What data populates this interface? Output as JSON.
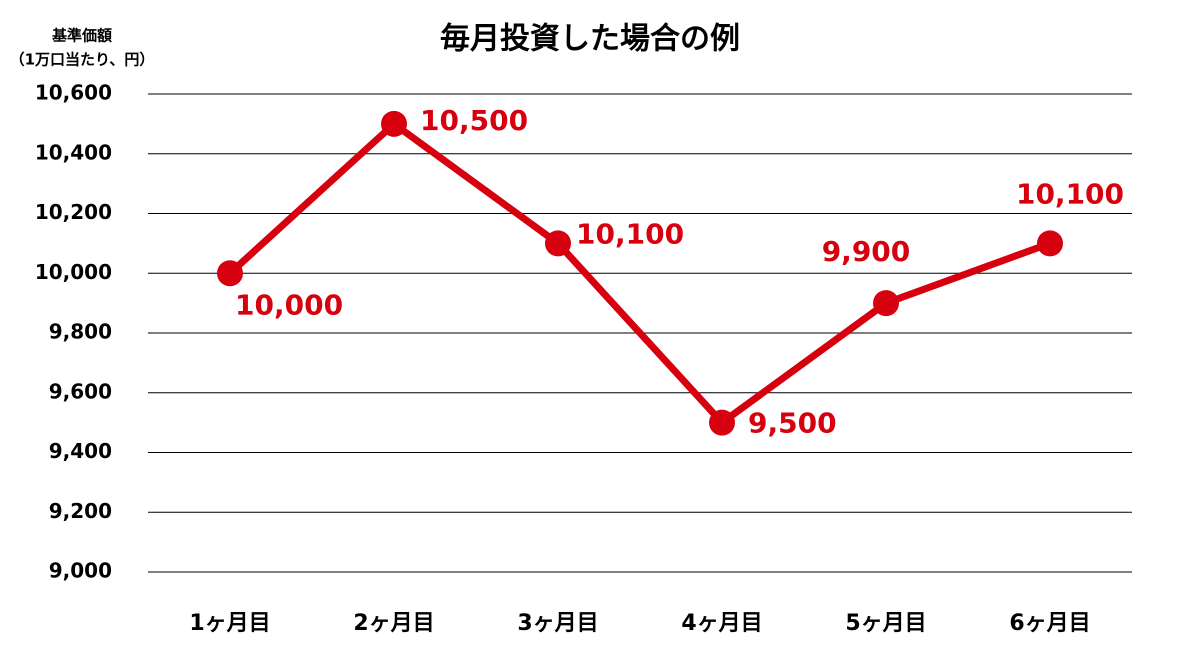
{
  "chart_data": {
    "type": "line",
    "title": "毎月投資した場合の例",
    "y_label": [
      "基準価額",
      "（1万口当たり、円）"
    ],
    "categories": [
      "1ヶ月目",
      "2ヶ月目",
      "3ヶ月目",
      "4ヶ月目",
      "5ヶ月目",
      "6ヶ月目"
    ],
    "series": [
      {
        "color": "#d7000f",
        "values": [
          10000,
          10500,
          10100,
          9500,
          9900,
          10100
        ],
        "value_labels": [
          "10,000",
          "10,500",
          "10,100",
          "9,500",
          "9,900",
          "10,100"
        ]
      }
    ],
    "ylim": [
      9000,
      10600
    ],
    "yticks": [
      {
        "value": 9000,
        "label": "9,000"
      },
      {
        "value": 9200,
        "label": "9,200"
      },
      {
        "value": 9400,
        "label": "9,400"
      },
      {
        "value": 9600,
        "label": "9,600"
      },
      {
        "value": 9800,
        "label": "9,800"
      },
      {
        "value": 10000,
        "label": "10,000"
      },
      {
        "value": 10200,
        "label": "10,200"
      },
      {
        "value": 10400,
        "label": "10,400"
      },
      {
        "value": 10600,
        "label": "10,600"
      }
    ],
    "grid": true
  }
}
